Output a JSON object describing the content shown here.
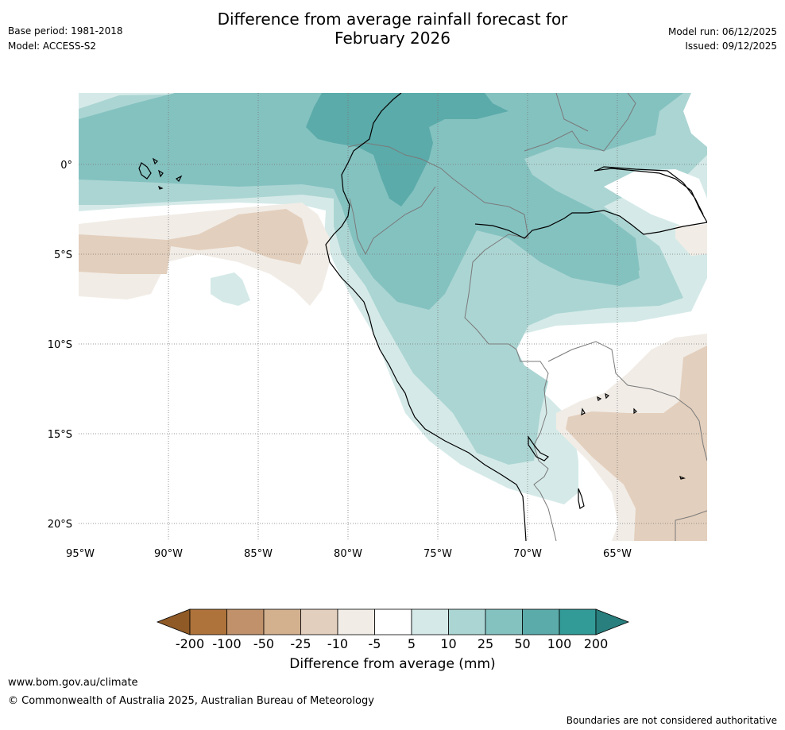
{
  "header": {
    "title_line1": "Difference from average rainfall forecast for",
    "title_line2": "February 2026",
    "base_period": "Base period: 1981-2018",
    "model": "Model: ACCESS-S2",
    "model_run": "Model run: 06/12/2025",
    "issued": "Issued: 09/12/2025"
  },
  "map": {
    "lat_labels": [
      "0°",
      "5°S",
      "10°S",
      "15°S",
      "20°S"
    ],
    "lon_labels": [
      "95°W",
      "90°W",
      "85°W",
      "80°W",
      "75°W",
      "70°W",
      "65°W"
    ],
    "colors": {
      "neg200": "#8f5a26",
      "neg100": "#ae733b",
      "neg50": "#c0916a",
      "neg25": "#d3b08e",
      "neg10": "#e3cfbd",
      "neg5": "#f1ece6",
      "zero": "#ffffff",
      "pos5": "#d5eae8",
      "pos10": "#abd5d3",
      "pos25": "#84c2c0",
      "pos50": "#5babaa",
      "pos100": "#329a97",
      "pos200": "#287f7d",
      "coast": "#000000",
      "border": "#7a7a7a",
      "grid": "#777777"
    }
  },
  "colorbar": {
    "ticks": [
      "-200",
      "-100",
      "-50",
      "-25",
      "-10",
      "-5",
      "5",
      "10",
      "25",
      "50",
      "100",
      "200"
    ],
    "label": "Difference from average (mm)"
  },
  "footer": {
    "website": "www.bom.gov.au/climate",
    "copyright": "© Commonwealth of Australia 2025, Australian Bureau of Meteorology",
    "disclaimer": "Boundaries are not considered authoritative"
  }
}
